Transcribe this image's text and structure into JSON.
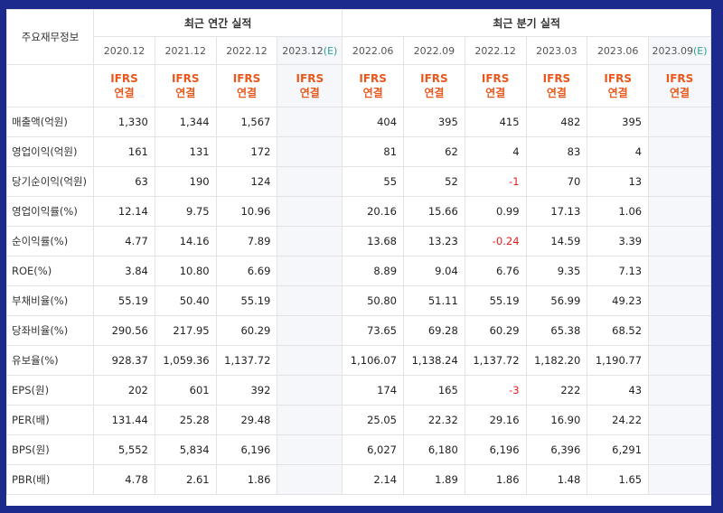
{
  "header": {
    "row_label": "주요재무정보",
    "annual_title": "최근 연간 실적",
    "quarterly_title": "최근 분기 실적",
    "ifrs_line1": "IFRS",
    "ifrs_line2": "연결"
  },
  "periods": [
    {
      "label": "2020.12",
      "estimate": false
    },
    {
      "label": "2021.12",
      "estimate": false
    },
    {
      "label": "2022.12",
      "estimate": false
    },
    {
      "label": "2023.12",
      "estimate": true
    },
    {
      "label": "2022.06",
      "estimate": false
    },
    {
      "label": "2022.09",
      "estimate": false
    },
    {
      "label": "2022.12",
      "estimate": false
    },
    {
      "label": "2023.03",
      "estimate": false
    },
    {
      "label": "2023.06",
      "estimate": false
    },
    {
      "label": "2023.09",
      "estimate": true
    }
  ],
  "estimate_mark": "(E)",
  "rows": [
    {
      "label": "매출액(억원)",
      "values": [
        "1,330",
        "1,344",
        "1,567",
        "",
        "404",
        "395",
        "415",
        "482",
        "395",
        ""
      ]
    },
    {
      "label": "영업이익(억원)",
      "values": [
        "161",
        "131",
        "172",
        "",
        "81",
        "62",
        "4",
        "83",
        "4",
        ""
      ]
    },
    {
      "label": "당기순이익(억원)",
      "values": [
        "63",
        "190",
        "124",
        "",
        "55",
        "52",
        "-1",
        "70",
        "13",
        ""
      ]
    },
    {
      "label": "영업이익률(%)",
      "values": [
        "12.14",
        "9.75",
        "10.96",
        "",
        "20.16",
        "15.66",
        "0.99",
        "17.13",
        "1.06",
        ""
      ]
    },
    {
      "label": "순이익률(%)",
      "values": [
        "4.77",
        "14.16",
        "7.89",
        "",
        "13.68",
        "13.23",
        "-0.24",
        "14.59",
        "3.39",
        ""
      ]
    },
    {
      "label": "ROE(%)",
      "values": [
        "3.84",
        "10.80",
        "6.69",
        "",
        "8.89",
        "9.04",
        "6.76",
        "9.35",
        "7.13",
        ""
      ]
    },
    {
      "label": "부채비율(%)",
      "values": [
        "55.19",
        "50.40",
        "55.19",
        "",
        "50.80",
        "51.11",
        "55.19",
        "56.99",
        "49.23",
        ""
      ]
    },
    {
      "label": "당좌비율(%)",
      "values": [
        "290.56",
        "217.95",
        "60.29",
        "",
        "73.65",
        "69.28",
        "60.29",
        "65.38",
        "68.52",
        ""
      ]
    },
    {
      "label": "유보율(%)",
      "values": [
        "928.37",
        "1,059.36",
        "1,137.72",
        "",
        "1,106.07",
        "1,138.24",
        "1,137.72",
        "1,182.20",
        "1,190.77",
        ""
      ]
    },
    {
      "label": "EPS(원)",
      "values": [
        "202",
        "601",
        "392",
        "",
        "174",
        "165",
        "-3",
        "222",
        "43",
        ""
      ]
    },
    {
      "label": "PER(배)",
      "values": [
        "131.44",
        "25.28",
        "29.48",
        "",
        "25.05",
        "22.32",
        "29.16",
        "16.90",
        "24.22",
        ""
      ]
    },
    {
      "label": "BPS(원)",
      "values": [
        "5,552",
        "5,834",
        "6,196",
        "",
        "6,027",
        "6,180",
        "6,196",
        "6,396",
        "6,291",
        ""
      ]
    },
    {
      "label": "PBR(배)",
      "values": [
        "4.78",
        "2.61",
        "1.86",
        "",
        "2.14",
        "1.89",
        "1.86",
        "1.48",
        "1.65",
        ""
      ]
    }
  ],
  "colors": {
    "background": "#1b2a8c",
    "ifrs_text": "#e8581c",
    "negative": "#e02020",
    "estimate_mark": "#2a9d8f",
    "estimate_column_bg": "#f5f7fa"
  }
}
